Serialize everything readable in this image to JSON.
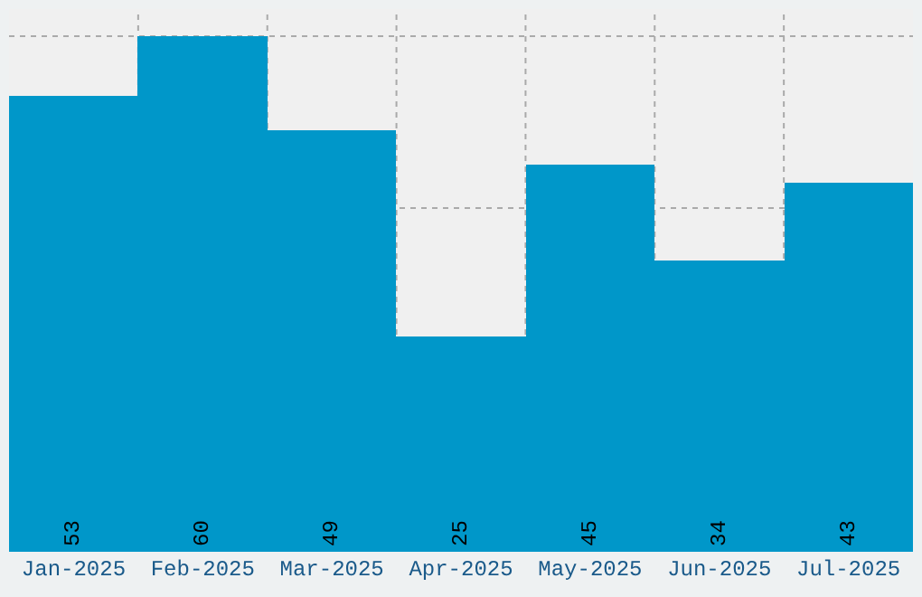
{
  "chart_data": {
    "type": "bar",
    "categories": [
      "Jan-2025",
      "Feb-2025",
      "Mar-2025",
      "Apr-2025",
      "May-2025",
      "Jun-2025",
      "Jul-2025"
    ],
    "values": [
      53,
      60,
      49,
      25,
      45,
      34,
      43
    ],
    "color": "#0097c9",
    "data_labels": true,
    "grid": true
  }
}
